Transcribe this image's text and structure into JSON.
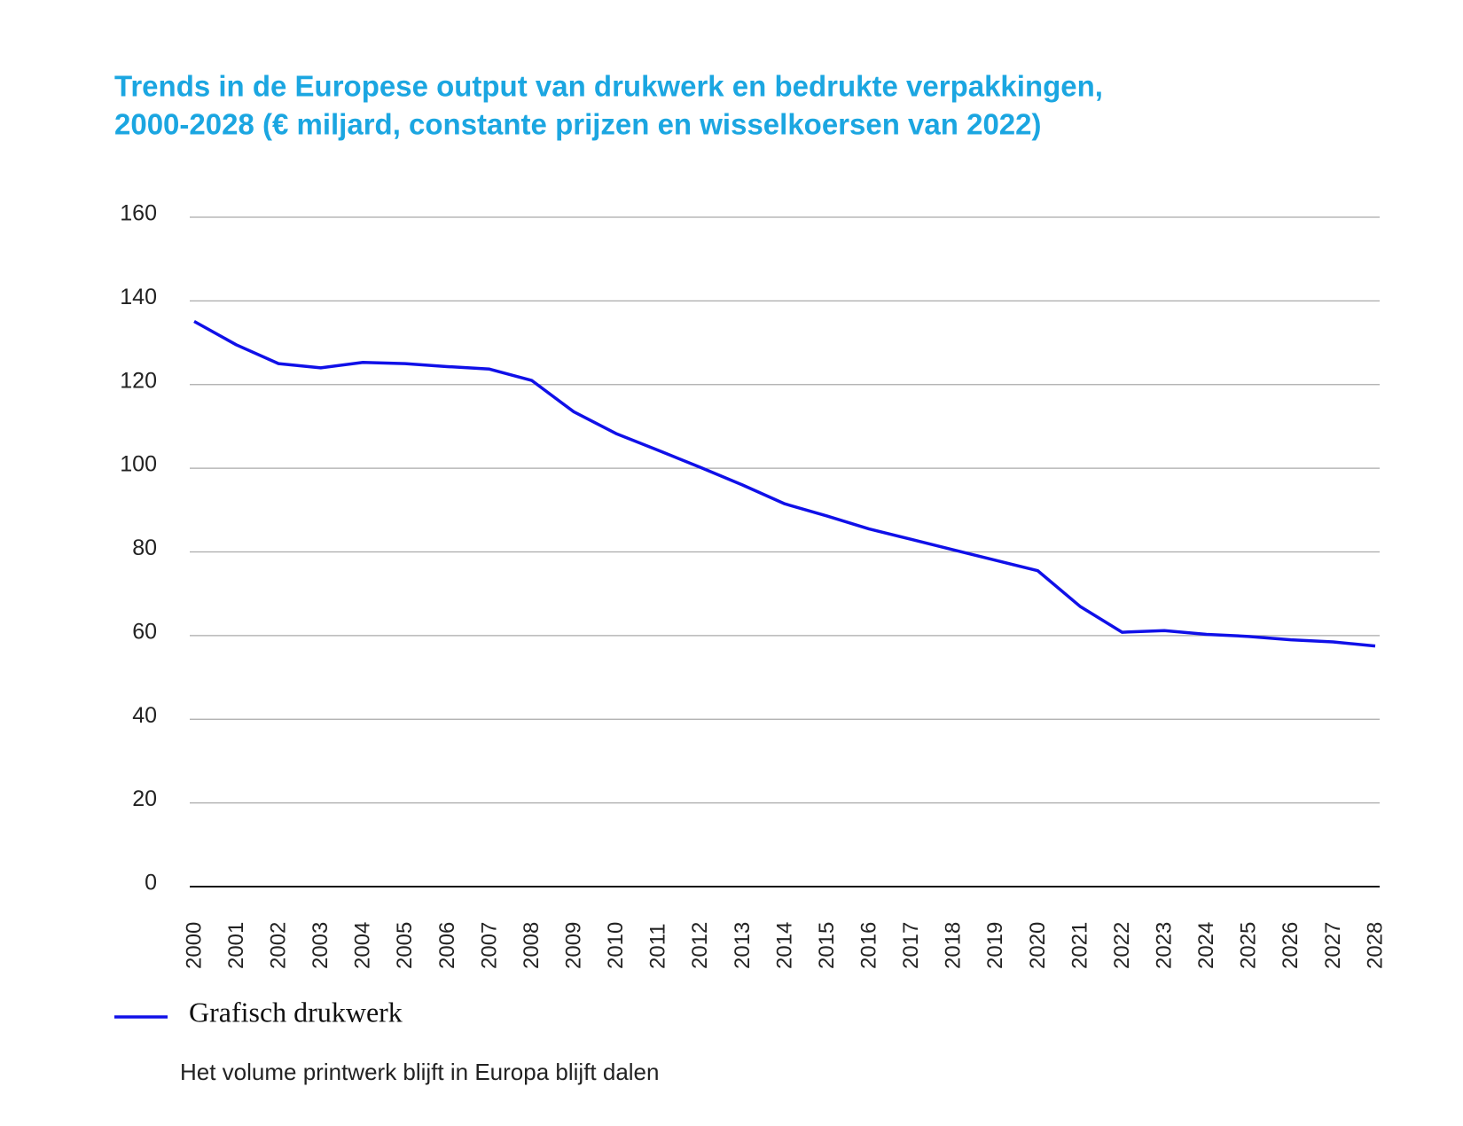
{
  "chart_data": {
    "type": "line",
    "title": [
      "Trends in de Europese output van drukwerk en bedrukte verpakkingen,",
      "2000-2028 (€ miljard, constante prijzen en wisselkoersen van 2022)"
    ],
    "note": "Het volume printwerk blijft in Europa blijft dalen",
    "categories": [
      "2000",
      "2001",
      "2002",
      "2003",
      "2004",
      "2005",
      "2006",
      "2007",
      "2008",
      "2009",
      "2010",
      "2011",
      "2012",
      "2013",
      "2014",
      "2015",
      "2016",
      "2017",
      "2018",
      "2019",
      "2020",
      "2021",
      "2022",
      "2023",
      "2024",
      "2025",
      "2026",
      "2027",
      "2028"
    ],
    "series": [
      {
        "name": "Grafisch drukwerk",
        "color": "#1010e8",
        "values": [
          135.1,
          129.5,
          125.0,
          124.0,
          125.3,
          125.0,
          124.3,
          123.7,
          121.0,
          113.5,
          108.3,
          104.3,
          100.2,
          96.0,
          91.5,
          88.6,
          85.5,
          83.0,
          80.5,
          78.0,
          75.5,
          67.0,
          60.8,
          61.2,
          60.3,
          59.8,
          59.0,
          58.5,
          57.5
        ]
      }
    ],
    "ylim": [
      0,
      160
    ],
    "yticks": [
      0,
      20,
      40,
      60,
      80,
      100,
      120,
      140,
      160
    ],
    "grid": true,
    "legend": "bottom-left"
  }
}
